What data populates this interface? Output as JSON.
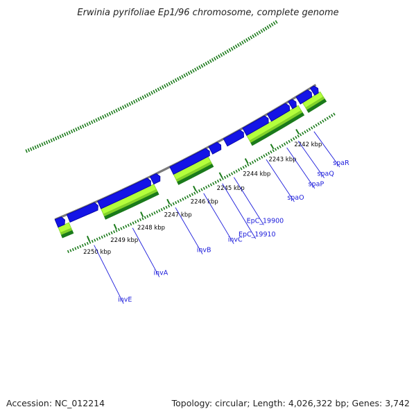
{
  "header": {
    "title": "Erwinia pyrifoliae Ep1/96 chromosome, complete genome"
  },
  "footer": {
    "accession": "Accession: NC_012214",
    "topology": "Topology: circular; Length: 4,026,322 bp; Genes: 3,742"
  },
  "colors": {
    "cds_blue": "#1414e6",
    "cds_blue_dark": "#00009a",
    "green_light": "#b4ff3c",
    "green_mid": "#82d22a",
    "green_dark": "#1a7a1a",
    "backbone": "#7a7a7a",
    "tick": "#1a7a1a",
    "label_blue": "#1a1adb"
  },
  "map": {
    "kbp_ticks": [
      {
        "label": "2250 kbp"
      },
      {
        "label": "2249 kbp"
      },
      {
        "label": "2248 kbp"
      },
      {
        "label": "2247 kbp"
      },
      {
        "label": "2246 kbp"
      },
      {
        "label": "2245 kbp"
      },
      {
        "label": "2244 kbp"
      },
      {
        "label": "2243 kbp"
      },
      {
        "label": "2242 kbp"
      }
    ],
    "genes": [
      {
        "label": "invE"
      },
      {
        "label": "invA"
      },
      {
        "label": "invB"
      },
      {
        "label": "invC"
      },
      {
        "label": "EpC_19910"
      },
      {
        "label": "EpC_19900"
      },
      {
        "label": "spaO"
      },
      {
        "label": "spaP"
      },
      {
        "label": "spaQ"
      },
      {
        "label": "spaR"
      }
    ]
  }
}
